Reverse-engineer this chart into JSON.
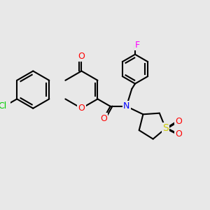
{
  "bg_color": "#e8e8e8",
  "bond_color": "#000000",
  "bond_width": 1.5,
  "atom_colors": {
    "O": "#ff0000",
    "N": "#0000ff",
    "Cl": "#00cc00",
    "F": "#ff00ff",
    "S": "#cccc00",
    "C": "#000000"
  },
  "font_size": 9,
  "font_size_small": 8
}
